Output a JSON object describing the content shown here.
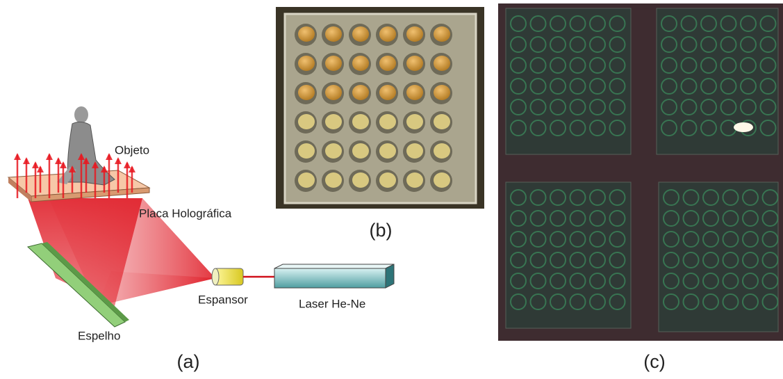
{
  "panel_a": {
    "labels": {
      "object": "Objeto",
      "plate": "Placa Holográfica",
      "expander": "Espansor",
      "laser": "Laser He-Ne",
      "mirror": "Espelho"
    },
    "caption": "(a)"
  },
  "panel_b": {
    "caption": "(b)"
  },
  "panel_c": {
    "caption": "(c)"
  }
}
